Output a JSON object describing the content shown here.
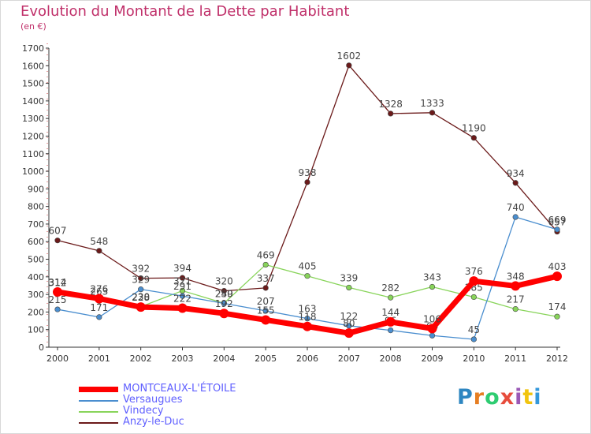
{
  "header": {
    "title": "Evolution du Montant de la Dette par Habitant",
    "unit": "(en €)"
  },
  "logo": {
    "letters": [
      "P",
      "r",
      "o",
      "x",
      "i",
      "t",
      "i"
    ],
    "colors": [
      "#2e86c1",
      "#e67e22",
      "#2ecc71",
      "#e74c3c",
      "#9b59b6",
      "#f1c40f",
      "#3498db"
    ]
  },
  "chart_data": {
    "type": "line",
    "x": [
      "2000",
      "2001",
      "2002",
      "2003",
      "2004",
      "2005",
      "2006",
      "2007",
      "2008",
      "2009",
      "2010",
      "2011",
      "2012"
    ],
    "ylim": [
      0,
      1700
    ],
    "yticks": [
      0,
      100,
      200,
      300,
      400,
      500,
      600,
      700,
      800,
      900,
      1000,
      1100,
      1200,
      1300,
      1400,
      1500,
      1600,
      1700
    ],
    "grid": false,
    "legend_position": "bottom",
    "series": [
      {
        "name": "Anzy-le-Duc",
        "color": "#6b1a1a",
        "values": [
          607,
          548,
          392,
          394,
          320,
          337,
          938,
          1602,
          1328,
          1333,
          1190,
          934,
          657
        ]
      },
      {
        "name": "Vindecy",
        "color": "#88d45a",
        "values": [
          312,
          263,
          230,
          321,
          250,
          469,
          405,
          339,
          282,
          343,
          285,
          217,
          174
        ]
      },
      {
        "name": "Versaugues",
        "color": "#4a8ecf",
        "values": [
          215,
          171,
          329,
          291,
          249,
          207,
          163,
          122,
          96,
          66,
          45,
          740,
          669
        ]
      },
      {
        "name": "MONTCEAUX-L'ÉTOILE",
        "color": "#ff0000",
        "values": [
          314,
          276,
          228,
          222,
          192,
          155,
          118,
          80,
          144,
          106,
          376,
          348,
          403
        ]
      }
    ]
  },
  "legend": {
    "items": [
      {
        "label": "MONTCEAUX-L'ÉTOILE",
        "color": "#ff0000",
        "text_color": "#6060ff"
      },
      {
        "label": "Versaugues",
        "color": "#4a8ecf",
        "text_color": "#6060ff"
      },
      {
        "label": "Vindecy",
        "color": "#88d45a",
        "text_color": "#6060ff"
      },
      {
        "label": "Anzy-le-Duc",
        "color": "#6b1a1a",
        "text_color": "#6060ff"
      }
    ]
  }
}
